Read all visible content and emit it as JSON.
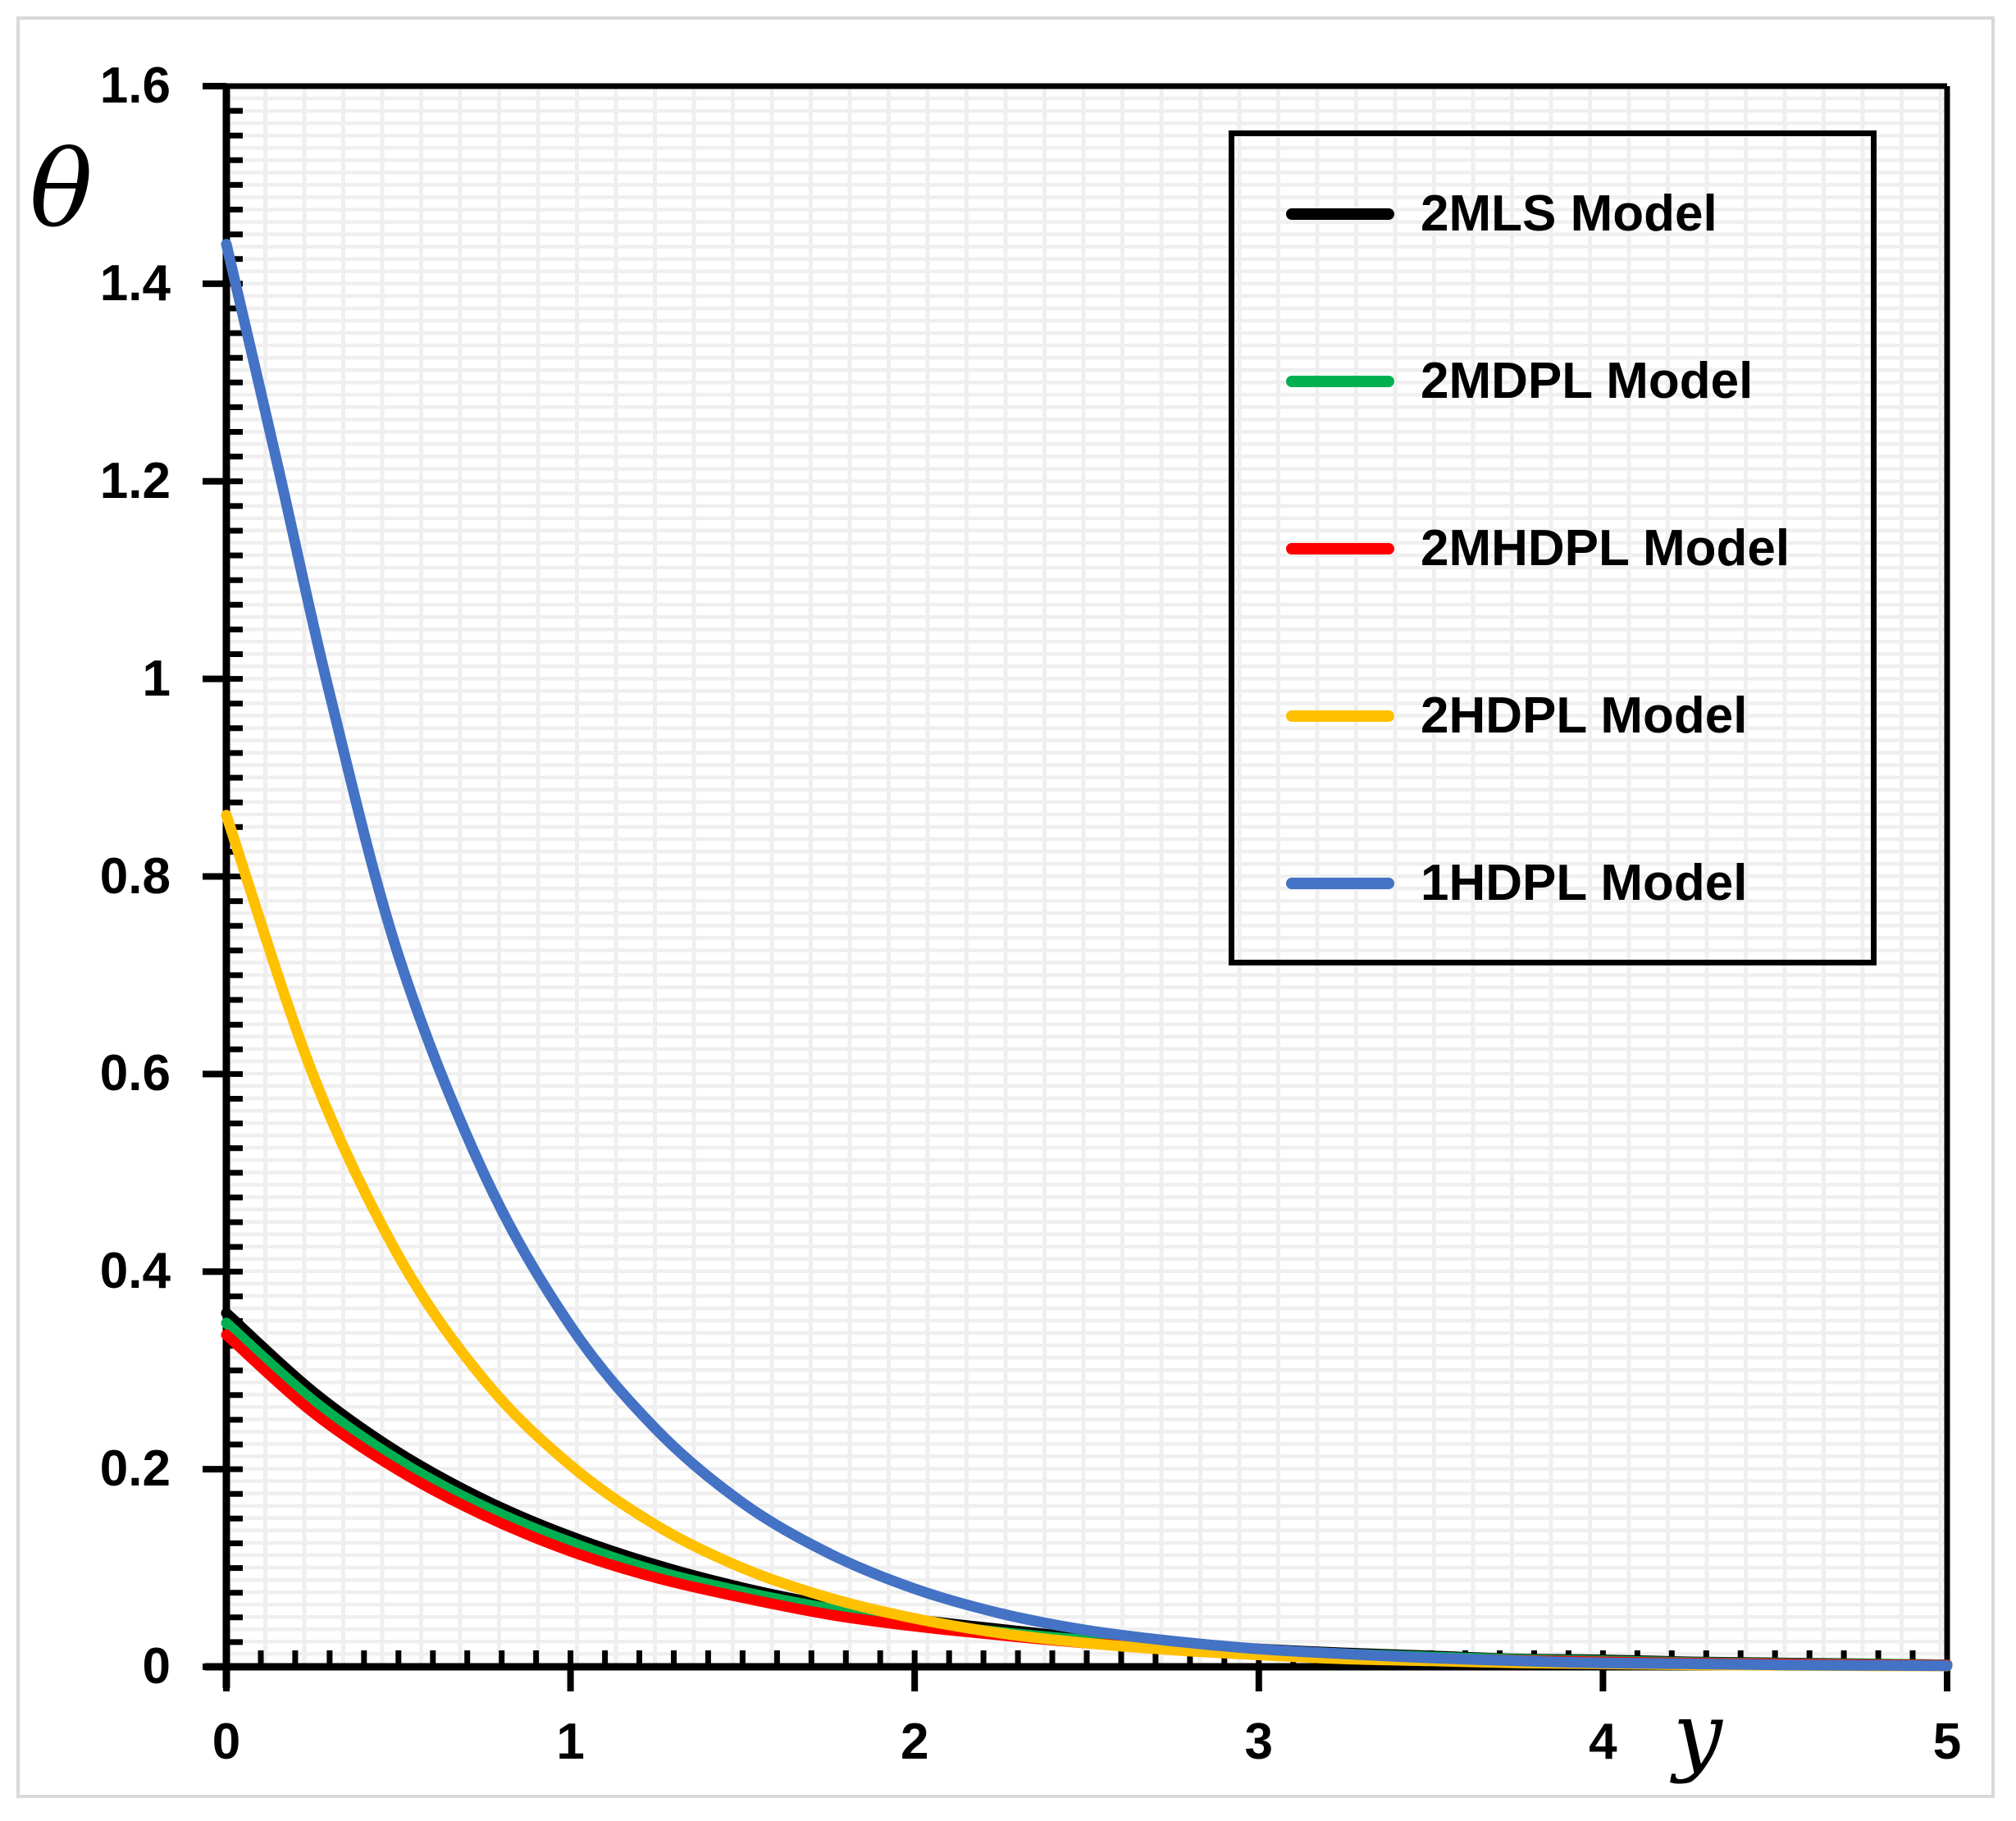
{
  "axes": {
    "x_label": "y",
    "y_label": "θ",
    "x_tick_labels": [
      "0",
      "1",
      "2",
      "3",
      "4",
      "5"
    ],
    "y_tick_labels": [
      "0",
      "0.2",
      "0.4",
      "0.6",
      "0.8",
      "1",
      "1.2",
      "1.4",
      "1.6"
    ]
  },
  "legend": {
    "items": [
      {
        "label": "2MLS Model",
        "color": "#000000"
      },
      {
        "label": "2MDPL Model",
        "color": "#00B050"
      },
      {
        "label": "2MHDPL Model",
        "color": "#FF0000"
      },
      {
        "label": "2HDPL Model",
        "color": "#FFC000"
      },
      {
        "label": "1HDPL Model",
        "color": "#4472C4"
      }
    ]
  },
  "colors": {
    "axis": "#000000",
    "grid": "#efefef",
    "frame": "#d9d9d9"
  },
  "chart_data": {
    "type": "line",
    "title": "",
    "xlabel": "y",
    "ylabel": "θ",
    "xlim": [
      0,
      5
    ],
    "ylim": [
      0,
      1.6
    ],
    "x_major_ticks": [
      0,
      1,
      2,
      3,
      4,
      5
    ],
    "y_major_ticks": [
      0,
      0.2,
      0.4,
      0.6,
      0.8,
      1,
      1.2,
      1.4,
      1.6
    ],
    "x_minor_step": 0.1,
    "y_minor_step": 0.025,
    "grid": true,
    "legend_position": "upper right",
    "series": [
      {
        "name": "2MLS Model",
        "color": "#000000",
        "points": [
          [
            0,
            0.358
          ],
          [
            0.25,
            0.279
          ],
          [
            0.5,
            0.217
          ],
          [
            0.75,
            0.169
          ],
          [
            1,
            0.132
          ],
          [
            1.25,
            0.103
          ],
          [
            1.5,
            0.08
          ],
          [
            1.75,
            0.062
          ],
          [
            2,
            0.048
          ],
          [
            2.25,
            0.038
          ],
          [
            2.5,
            0.029
          ],
          [
            2.75,
            0.023
          ],
          [
            3,
            0.018
          ],
          [
            3.25,
            0.014
          ],
          [
            3.5,
            0.011
          ],
          [
            3.75,
            0.008
          ],
          [
            4,
            0.007
          ],
          [
            4.25,
            0.005
          ],
          [
            4.5,
            0.004
          ],
          [
            4.75,
            0.003
          ],
          [
            5,
            0.002
          ]
        ]
      },
      {
        "name": "2MDPL Model",
        "color": "#00B050",
        "points": [
          [
            0,
            0.348
          ],
          [
            0.25,
            0.27
          ],
          [
            0.5,
            0.209
          ],
          [
            0.75,
            0.162
          ],
          [
            1,
            0.126
          ],
          [
            1.25,
            0.097
          ],
          [
            1.5,
            0.076
          ],
          [
            1.75,
            0.059
          ],
          [
            2,
            0.045
          ],
          [
            2.25,
            0.035
          ],
          [
            2.5,
            0.027
          ],
          [
            2.75,
            0.021
          ],
          [
            3,
            0.016
          ],
          [
            3.25,
            0.013
          ],
          [
            3.5,
            0.01
          ],
          [
            3.75,
            0.0075
          ],
          [
            4,
            0.006
          ],
          [
            4.25,
            0.0045
          ],
          [
            4.5,
            0.0035
          ],
          [
            4.75,
            0.0027
          ],
          [
            5,
            0.002
          ]
        ]
      },
      {
        "name": "2MHDPL Model",
        "color": "#FF0000",
        "points": [
          [
            0,
            0.336
          ],
          [
            0.25,
            0.258
          ],
          [
            0.5,
            0.199
          ],
          [
            0.75,
            0.153
          ],
          [
            1,
            0.117
          ],
          [
            1.25,
            0.09
          ],
          [
            1.5,
            0.07
          ],
          [
            1.75,
            0.053
          ],
          [
            2,
            0.041
          ],
          [
            2.25,
            0.032
          ],
          [
            2.5,
            0.024
          ],
          [
            2.75,
            0.019
          ],
          [
            3,
            0.014
          ],
          [
            3.25,
            0.011
          ],
          [
            3.5,
            0.0085
          ],
          [
            3.75,
            0.0065
          ],
          [
            4,
            0.005
          ],
          [
            4.25,
            0.0038
          ],
          [
            4.5,
            0.003
          ],
          [
            4.75,
            0.0022
          ],
          [
            5,
            0.0017
          ]
        ]
      },
      {
        "name": "2HDPL Model",
        "color": "#FFC000",
        "points": [
          [
            0,
            0.862
          ],
          [
            0.25,
            0.601
          ],
          [
            0.5,
            0.416
          ],
          [
            0.75,
            0.29
          ],
          [
            1,
            0.204
          ],
          [
            1.25,
            0.143
          ],
          [
            1.5,
            0.1
          ],
          [
            1.75,
            0.07
          ],
          [
            2,
            0.049
          ],
          [
            2.25,
            0.034
          ],
          [
            2.5,
            0.024
          ],
          [
            2.75,
            0.017
          ],
          [
            3,
            0.012
          ],
          [
            3.25,
            0.008
          ],
          [
            3.5,
            0.006
          ],
          [
            3.75,
            0.004
          ],
          [
            4,
            0.003
          ],
          [
            4.25,
            0.002
          ],
          [
            4.5,
            0.0015
          ],
          [
            4.75,
            0.001
          ],
          [
            5,
            0.0008
          ]
        ]
      },
      {
        "name": "1HDPL Model",
        "color": "#4472C4",
        "points": [
          [
            0,
            1.44
          ],
          [
            0.15,
            1.215
          ],
          [
            0.3,
            0.985
          ],
          [
            0.5,
            0.72
          ],
          [
            0.75,
            0.498
          ],
          [
            1,
            0.345
          ],
          [
            1.25,
            0.24
          ],
          [
            1.5,
            0.166
          ],
          [
            1.75,
            0.115
          ],
          [
            2,
            0.079
          ],
          [
            2.25,
            0.054
          ],
          [
            2.5,
            0.037
          ],
          [
            2.75,
            0.026
          ],
          [
            3,
            0.018
          ],
          [
            3.25,
            0.013
          ],
          [
            3.5,
            0.009
          ],
          [
            3.75,
            0.006
          ],
          [
            4,
            0.004
          ],
          [
            4.25,
            0.003
          ],
          [
            4.5,
            0.002
          ],
          [
            4.75,
            0.0015
          ],
          [
            5,
            0.001
          ]
        ]
      }
    ]
  }
}
